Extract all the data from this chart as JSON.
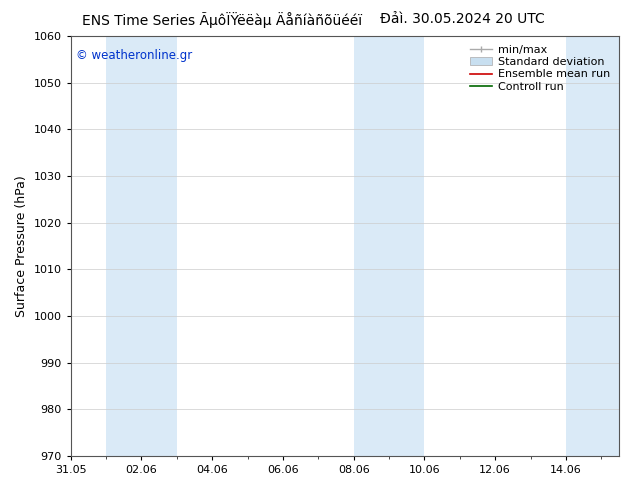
{
  "title_left": "ENS Time Series ÃµôÏŸëëàµ Äåñíàñõüééï",
  "title_right": "Đảì. 30.05.2024 20 UTC",
  "ylabel": "Surface Pressure (hPa)",
  "watermark": "© weatheronline.gr",
  "watermark_color": "#0033cc",
  "ylim": [
    970,
    1060
  ],
  "yticks": [
    970,
    980,
    990,
    1000,
    1010,
    1020,
    1030,
    1040,
    1050,
    1060
  ],
  "x_ticks": [
    "31.05",
    "02.06",
    "04.06",
    "06.06",
    "08.06",
    "10.06",
    "12.06",
    "14.06"
  ],
  "x_tick_positions": [
    0,
    2,
    4,
    6,
    8,
    10,
    12,
    14
  ],
  "xlim": [
    0,
    15.5
  ],
  "shaded_bands": [
    {
      "start": 1,
      "end": 3,
      "color": "#daeaf7"
    },
    {
      "start": 8,
      "end": 10,
      "color": "#daeaf7"
    },
    {
      "start": 14,
      "end": 15.5,
      "color": "#daeaf7"
    }
  ],
  "bg_color": "#ffffff",
  "plot_bg_color": "#ffffff",
  "grid_color": "#cccccc",
  "title_fontsize": 10,
  "tick_fontsize": 8,
  "ylabel_fontsize": 9,
  "legend_fontsize": 8
}
